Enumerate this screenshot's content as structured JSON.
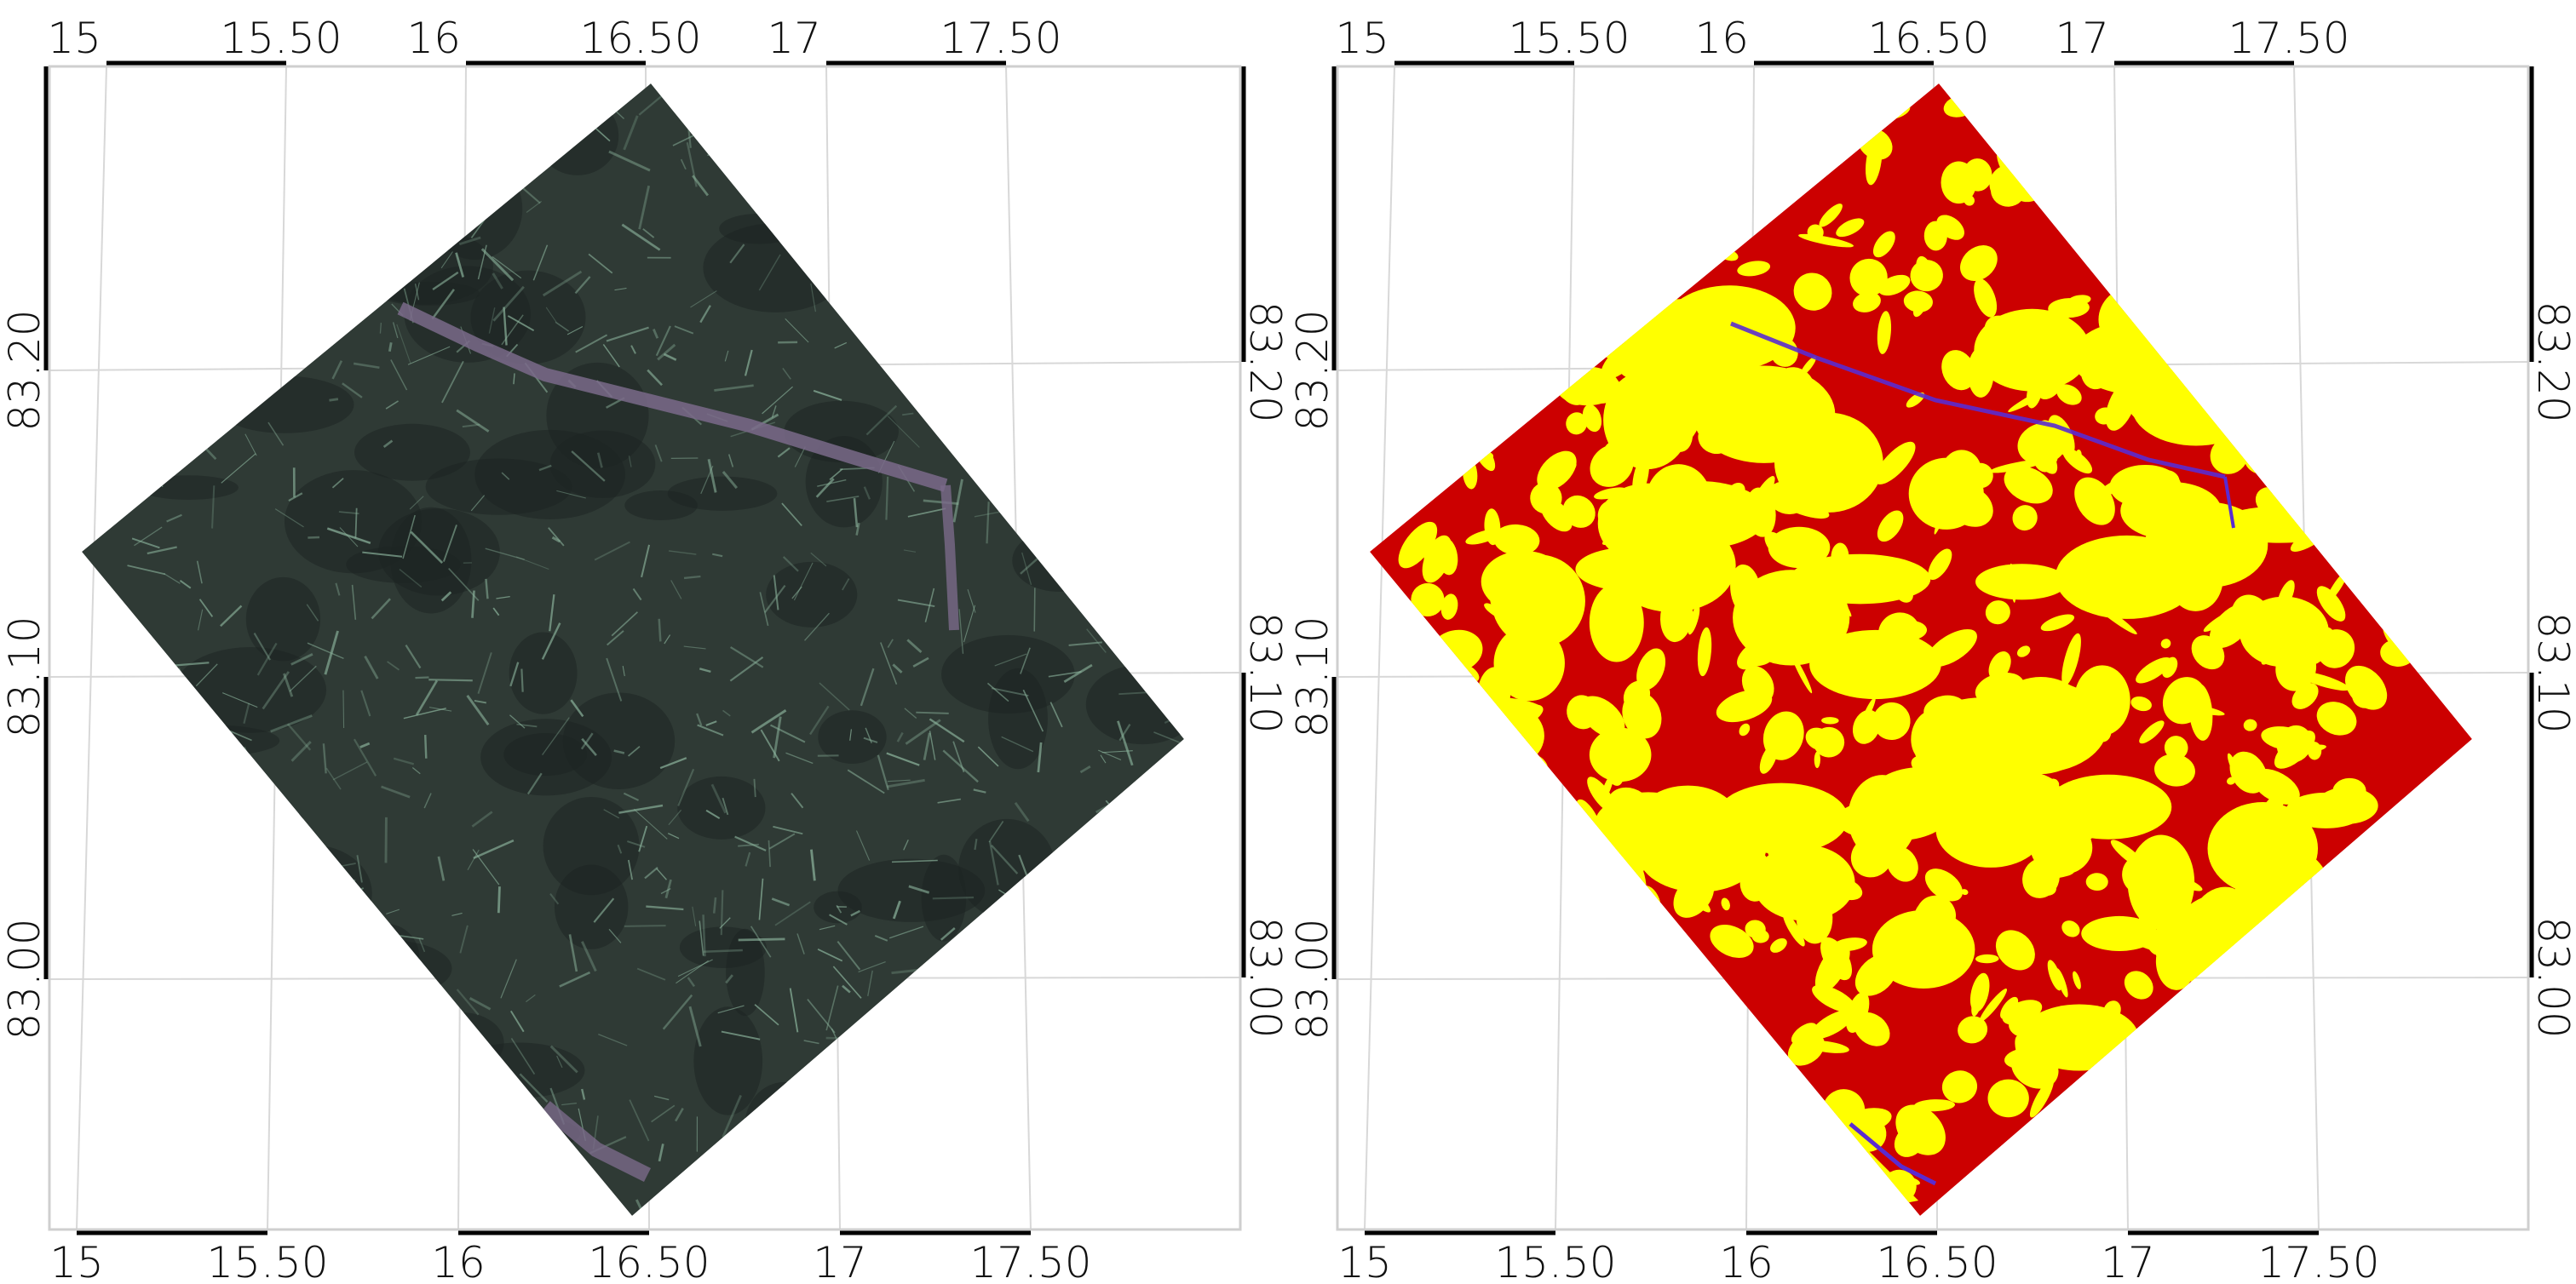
{
  "map_panels": [
    {
      "name": "rgb-composite",
      "lon_ticks_top": [
        "15",
        "15.50",
        "16",
        "16.50",
        "17",
        "17.50"
      ],
      "lon_ticks_bottom": [
        "15",
        "15.50",
        "16",
        "16.50",
        "17",
        "17.50"
      ],
      "lat_ticks_left": [
        "83.20",
        "83.10",
        "83.00"
      ],
      "lat_ticks_right": [
        "83.20",
        "83.10",
        "83.00"
      ],
      "colors": {
        "base": "#2f3a35",
        "texture": "#8fb8a0",
        "dark": "#1e2422",
        "streak": "#7a6a8a"
      }
    },
    {
      "name": "classified-map",
      "lon_ticks_top": [
        "15",
        "15.50",
        "16",
        "16.50",
        "17",
        "17.50"
      ],
      "lon_ticks_bottom": [
        "15",
        "15.50",
        "16",
        "16.50",
        "17",
        "17.50"
      ],
      "lat_ticks_left": [
        "83.20",
        "83.10",
        "83.00"
      ],
      "lat_ticks_right": [
        "83.20",
        "83.10",
        "83.00"
      ],
      "colors": {
        "base": "#cc0000",
        "class2": "#ffff00",
        "class3": "#5a2bd0",
        "class4": "#3fd0ff"
      }
    }
  ]
}
